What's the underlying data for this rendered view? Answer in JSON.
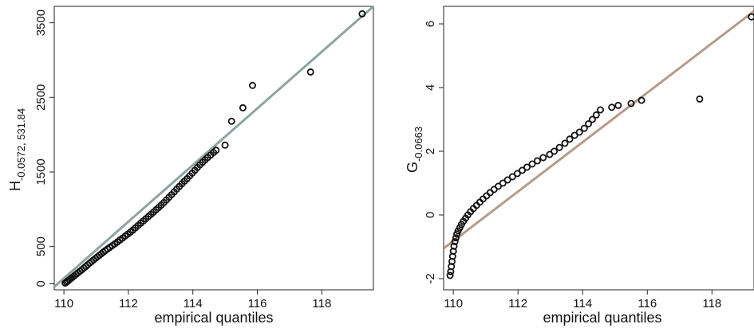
{
  "chart_data": [
    {
      "type": "scatter",
      "title": "",
      "xlabel": "empirical quantiles",
      "ylabel": {
        "main": "H",
        "subscript": "-0.0572, 531.84"
      },
      "xlim": [
        109.7,
        119.6
      ],
      "ylim": [
        -80,
        3720
      ],
      "xticks": [
        "110",
        "112",
        "114",
        "116",
        "118"
      ],
      "yticks": [
        "0",
        "500",
        "1500",
        "2500",
        "3500"
      ],
      "reference_line": {
        "color": "#8fa3a3",
        "points": [
          [
            109.7,
            -40
          ],
          [
            119.6,
            3720
          ]
        ]
      },
      "grid": false,
      "legend": "none",
      "point_color": "#111111",
      "series": [
        {
          "values_xy": [
            [
              110.04,
              10
            ],
            [
              110.08,
              24
            ],
            [
              110.12,
              38
            ],
            [
              110.17,
              55
            ],
            [
              110.22,
              72
            ],
            [
              110.27,
              90
            ],
            [
              110.32,
              108
            ],
            [
              110.38,
              128
            ],
            [
              110.44,
              150
            ],
            [
              110.5,
              170
            ],
            [
              110.56,
              190
            ],
            [
              110.62,
              212
            ],
            [
              110.68,
              234
            ],
            [
              110.74,
              256
            ],
            [
              110.8,
              278
            ],
            [
              110.86,
              300
            ],
            [
              110.92,
              320
            ],
            [
              110.98,
              342
            ],
            [
              111.04,
              362
            ],
            [
              111.1,
              382
            ],
            [
              111.16,
              404
            ],
            [
              111.22,
              424
            ],
            [
              111.28,
              444
            ],
            [
              111.35,
              466
            ],
            [
              111.42,
              488
            ],
            [
              111.5,
              512
            ],
            [
              111.58,
              536
            ],
            [
              111.66,
              562
            ],
            [
              111.74,
              588
            ],
            [
              111.82,
              614
            ],
            [
              111.9,
              640
            ],
            [
              111.98,
              666
            ],
            [
              112.06,
              694
            ],
            [
              112.14,
              722
            ],
            [
              112.22,
              752
            ],
            [
              112.3,
              782
            ],
            [
              112.38,
              812
            ],
            [
              112.46,
              842
            ],
            [
              112.54,
              872
            ],
            [
              112.62,
              902
            ],
            [
              112.7,
              932
            ],
            [
              112.78,
              962
            ],
            [
              112.86,
              994
            ],
            [
              112.94,
              1024
            ],
            [
              113.02,
              1056
            ],
            [
              113.1,
              1090
            ],
            [
              113.18,
              1124
            ],
            [
              113.26,
              1160
            ],
            [
              113.34,
              1196
            ],
            [
              113.42,
              1232
            ],
            [
              113.5,
              1270
            ],
            [
              113.58,
              1306
            ],
            [
              113.66,
              1342
            ],
            [
              113.74,
              1376
            ],
            [
              113.82,
              1410
            ],
            [
              113.9,
              1446
            ],
            [
              113.98,
              1484
            ],
            [
              114.06,
              1522
            ],
            [
              114.14,
              1560
            ],
            [
              114.22,
              1596
            ],
            [
              114.3,
              1630
            ],
            [
              114.38,
              1662
            ],
            [
              114.46,
              1694
            ],
            [
              114.55,
              1726
            ],
            [
              114.64,
              1760
            ],
            [
              114.72,
              1790
            ],
            [
              115.0,
              1860
            ],
            [
              115.2,
              2180
            ],
            [
              115.55,
              2360
            ],
            [
              115.85,
              2660
            ],
            [
              117.65,
              2840
            ],
            [
              119.25,
              3620
            ]
          ]
        }
      ]
    },
    {
      "type": "scatter",
      "title": "",
      "xlabel": "empirical quantiles",
      "ylabel": {
        "main": "G",
        "subscript": "-0.0663"
      },
      "xlim": [
        109.7,
        119.3
      ],
      "ylim": [
        -2.35,
        6.55
      ],
      "xticks": [
        "110",
        "112",
        "114",
        "116",
        "118"
      ],
      "yticks": [
        "-2",
        "0",
        "2",
        "4",
        "6"
      ],
      "reference_line": {
        "color": "#b89a8a",
        "points": [
          [
            109.7,
            -1.05
          ],
          [
            119.3,
            6.4
          ]
        ]
      },
      "grid": false,
      "legend": "none",
      "point_color": "#111111",
      "series": [
        {
          "values_xy": [
            [
              109.9,
              -1.9
            ],
            [
              109.92,
              -1.78
            ],
            [
              109.94,
              -1.62
            ],
            [
              109.96,
              -1.46
            ],
            [
              109.98,
              -1.3
            ],
            [
              110.0,
              -1.14
            ],
            [
              110.02,
              -0.98
            ],
            [
              110.05,
              -0.84
            ],
            [
              110.08,
              -0.72
            ],
            [
              110.11,
              -0.6
            ],
            [
              110.15,
              -0.5
            ],
            [
              110.2,
              -0.4
            ],
            [
              110.25,
              -0.3
            ],
            [
              110.31,
              -0.2
            ],
            [
              110.38,
              -0.1
            ],
            [
              110.45,
              0.0
            ],
            [
              110.53,
              0.1
            ],
            [
              110.62,
              0.2
            ],
            [
              110.72,
              0.3
            ],
            [
              110.82,
              0.4
            ],
            [
              110.92,
              0.5
            ],
            [
              111.03,
              0.6
            ],
            [
              111.14,
              0.7
            ],
            [
              111.26,
              0.8
            ],
            [
              111.39,
              0.9
            ],
            [
              111.53,
              1.0
            ],
            [
              111.68,
              1.1
            ],
            [
              111.83,
              1.2
            ],
            [
              111.98,
              1.3
            ],
            [
              112.13,
              1.4
            ],
            [
              112.28,
              1.5
            ],
            [
              112.44,
              1.6
            ],
            [
              112.6,
              1.7
            ],
            [
              112.78,
              1.8
            ],
            [
              112.98,
              1.9
            ],
            [
              113.12,
              2.0
            ],
            [
              113.28,
              2.12
            ],
            [
              113.45,
              2.25
            ],
            [
              113.6,
              2.38
            ],
            [
              113.75,
              2.5
            ],
            [
              113.9,
              2.6
            ],
            [
              114.05,
              2.72
            ],
            [
              114.18,
              2.86
            ],
            [
              114.3,
              3.0
            ],
            [
              114.42,
              3.14
            ],
            [
              114.55,
              3.3
            ],
            [
              114.9,
              3.38
            ],
            [
              115.1,
              3.44
            ],
            [
              115.5,
              3.5
            ],
            [
              115.82,
              3.6
            ],
            [
              117.62,
              3.64
            ],
            [
              119.22,
              6.22
            ]
          ]
        }
      ]
    }
  ]
}
